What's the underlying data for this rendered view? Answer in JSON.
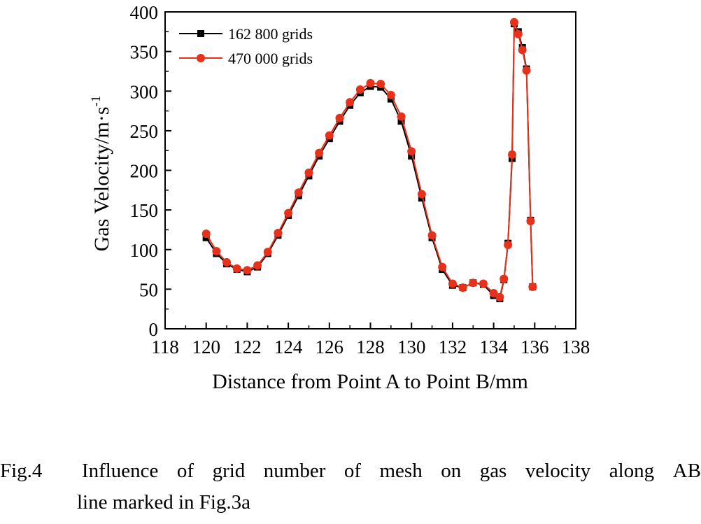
{
  "chart_data": {
    "type": "line",
    "xlabel": "Distance from Point A to Point B/mm",
    "ylabel": "Gas Velocity/m·s",
    "ylabel_sup": "-1",
    "xlim": [
      118,
      138
    ],
    "ylim": [
      0,
      400
    ],
    "xticks": [
      "118",
      "120",
      "122",
      "124",
      "126",
      "128",
      "130",
      "132",
      "134",
      "136",
      "138"
    ],
    "yticks": [
      "0",
      "50",
      "100",
      "150",
      "200",
      "250",
      "300",
      "350",
      "400"
    ],
    "grid": false,
    "legend_position": "top-left",
    "series": [
      {
        "name": "162 800 grids",
        "color": "#000000",
        "marker": "square",
        "x": [
          120,
          120.5,
          121,
          121.5,
          122,
          122.5,
          123,
          123.5,
          124,
          124.5,
          125,
          125.5,
          126,
          126.5,
          127,
          127.5,
          128,
          128.5,
          129,
          129.5,
          130,
          130.5,
          131,
          131.5,
          132,
          132.5,
          133,
          133.5,
          134,
          134.3,
          134.5,
          134.7,
          134.9,
          135.0,
          135.2,
          135.4,
          135.6,
          135.8,
          135.9
        ],
        "y": [
          115,
          95,
          82,
          75,
          72,
          78,
          95,
          118,
          143,
          168,
          193,
          218,
          240,
          262,
          282,
          298,
          306,
          305,
          290,
          262,
          218,
          165,
          115,
          75,
          55,
          52,
          58,
          56,
          42,
          38,
          62,
          108,
          215,
          385,
          375,
          355,
          328,
          137,
          53
        ]
      },
      {
        "name": "470 000 grids",
        "color": "#e8311a",
        "marker": "circle",
        "x": [
          120,
          120.5,
          121,
          121.5,
          122,
          122.5,
          123,
          123.5,
          124,
          124.5,
          125,
          125.5,
          126,
          126.5,
          127,
          127.5,
          128,
          128.5,
          129,
          129.5,
          130,
          130.5,
          131,
          131.5,
          132,
          132.5,
          133,
          133.5,
          134,
          134.3,
          134.5,
          134.7,
          134.9,
          135.0,
          135.2,
          135.4,
          135.6,
          135.8,
          135.9
        ],
        "y": [
          120,
          98,
          84,
          76,
          74,
          80,
          97,
          121,
          146,
          172,
          197,
          222,
          244,
          266,
          286,
          302,
          310,
          309,
          295,
          268,
          224,
          170,
          118,
          78,
          57,
          52,
          58,
          57,
          45,
          40,
          63,
          106,
          220,
          387,
          372,
          352,
          326,
          136,
          53
        ]
      }
    ]
  },
  "caption": {
    "label": "Fig.4",
    "words": [
      "Influence",
      "of",
      "grid",
      "number",
      "of",
      "mesh",
      "on",
      "gas",
      "velocity",
      "along",
      "AB"
    ],
    "line2": "line marked in Fig.3a"
  }
}
